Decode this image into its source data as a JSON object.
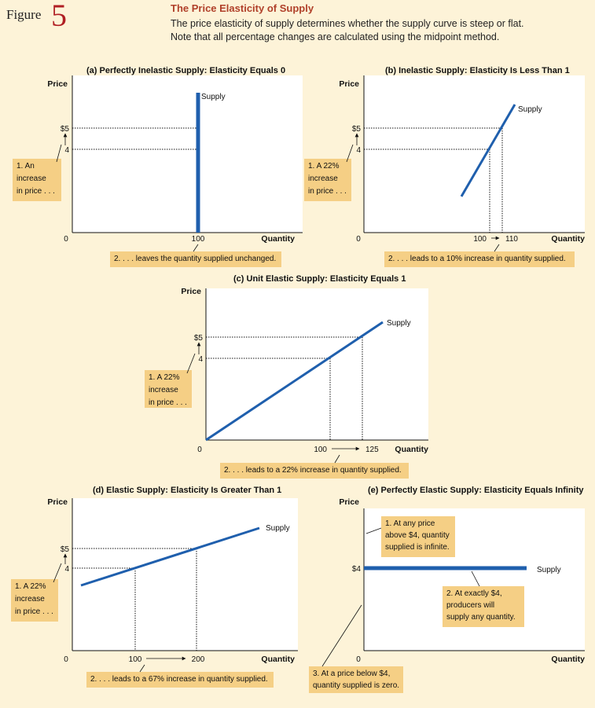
{
  "figure": {
    "word": "Figure",
    "number": "5",
    "title": "The Price Elasticity of Supply",
    "desc_line1": "The price elasticity of supply determines whether the supply curve is steep or flat.",
    "desc_line2": "Note that all percentage changes are calculated using the midpoint method."
  },
  "chart_data": [
    {
      "id": "a",
      "type": "line",
      "title": "(a) Perfectly Inelastic Supply: Elasticity Equals 0",
      "xlabel": "Quantity",
      "ylabel": "Price",
      "origin_label": "0",
      "price_ticks": [
        "$5",
        "4"
      ],
      "quantity_ticks": [
        "100"
      ],
      "supply_label": "Supply",
      "supply_points": [
        [
          100,
          0
        ],
        [
          100,
          6.8
        ]
      ],
      "guides": {
        "prices": [
          5,
          4
        ],
        "quantities": []
      },
      "notes": {
        "price_change": [
          "1. An",
          "increase",
          "in price . . ."
        ],
        "quantity_change": [
          "2. . . . leaves the quantity supplied unchanged."
        ]
      }
    },
    {
      "id": "b",
      "type": "line",
      "title": "(b) Inelastic Supply: Elasticity Is Less Than 1",
      "xlabel": "Quantity",
      "ylabel": "Price",
      "origin_label": "0",
      "price_ticks": [
        "$5",
        "4"
      ],
      "quantity_ticks": [
        "100",
        "110"
      ],
      "supply_label": "Supply",
      "supply_points": [
        [
          85,
          1.7
        ],
        [
          120,
          6.5
        ]
      ],
      "guides": {
        "prices": [
          5,
          4
        ],
        "quantities": [
          100,
          110
        ]
      },
      "notes": {
        "price_change": [
          "1. A 22%",
          "increase",
          "in price . . ."
        ],
        "quantity_change": [
          "2. . . . leads to a 10% increase in quantity supplied."
        ]
      }
    },
    {
      "id": "c",
      "type": "line",
      "title": "(c) Unit Elastic Supply: Elasticity Equals 1",
      "xlabel": "Quantity",
      "ylabel": "Price",
      "origin_label": "0",
      "price_ticks": [
        "$5",
        "4"
      ],
      "quantity_ticks": [
        "100",
        "125"
      ],
      "supply_label": "Supply",
      "supply_points": [
        [
          0,
          0
        ],
        [
          140,
          5.6
        ]
      ],
      "guides": {
        "prices": [
          5,
          4
        ],
        "quantities": [
          100,
          125
        ]
      },
      "notes": {
        "price_change": [
          "1. A 22%",
          "increase",
          "in price . . ."
        ],
        "quantity_change": [
          "2. . . . leads to a 22% increase in quantity supplied."
        ]
      }
    },
    {
      "id": "d",
      "type": "line",
      "title": "(d) Elastic Supply: Elasticity Is Greater Than 1",
      "xlabel": "Quantity",
      "ylabel": "Price",
      "origin_label": "0",
      "price_ticks": [
        "$5",
        "4"
      ],
      "quantity_ticks": [
        "100",
        "200"
      ],
      "supply_label": "Supply",
      "supply_points": [
        [
          25,
          3.2
        ],
        [
          310,
          6.0
        ]
      ],
      "guides": {
        "prices": [
          5,
          4
        ],
        "quantities": [
          100,
          200
        ]
      },
      "notes": {
        "price_change": [
          "1. A 22%",
          "increase",
          "in price . . ."
        ],
        "quantity_change": [
          "2. . . . leads to a 67% increase in quantity supplied."
        ]
      }
    },
    {
      "id": "e",
      "type": "line",
      "title": "(e) Perfectly Elastic Supply: Elasticity Equals Infinity",
      "xlabel": "Quantity",
      "ylabel": "Price",
      "origin_label": "0",
      "price_ticks": [
        "$4"
      ],
      "quantity_ticks": [],
      "supply_label": "Supply",
      "supply_points": [
        [
          0,
          4
        ],
        [
          210,
          4
        ]
      ],
      "guides": {
        "prices": [],
        "quantities": []
      },
      "notes": {
        "above": [
          "1. At any price",
          "above $4, quantity",
          "supplied is infinite."
        ],
        "exact": [
          "2. At exactly $4,",
          "producers will",
          "supply any quantity."
        ],
        "below": [
          "3. At a price below $4,",
          "quantity supplied is zero."
        ]
      }
    }
  ]
}
